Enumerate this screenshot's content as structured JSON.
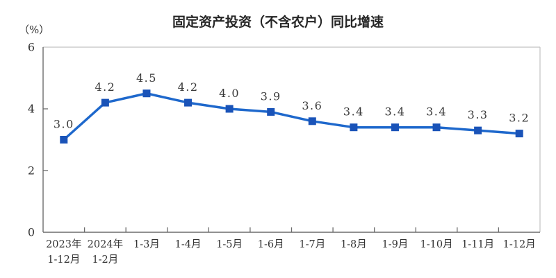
{
  "page": {
    "title": "固定资产投资（不含农户）同比增速",
    "unit_label": "（%）"
  },
  "chart_data": {
    "type": "line",
    "title": "固定资产投资（不含农户）同比增速",
    "unit": "（%）",
    "categories": [
      "2023年\n1-12月",
      "2024年\n1-2月",
      "1-3月",
      "1-4月",
      "1-5月",
      "1-6月",
      "1-7月",
      "1-8月",
      "1-9月",
      "1-10月",
      "1-11月",
      "1-12月"
    ],
    "values": [
      3.0,
      4.2,
      4.5,
      4.2,
      4.0,
      3.9,
      3.6,
      3.4,
      3.4,
      3.4,
      3.3,
      3.2
    ],
    "yticks": [
      0,
      2,
      4,
      6
    ],
    "ylim": [
      0,
      6
    ],
    "xlabel": "",
    "ylabel": "（%）",
    "grid": false,
    "legend_position": "none",
    "colors": {
      "line": "#1e68cc",
      "marker": "#1a53b8",
      "axis": "#6b6b6b",
      "border": "#c2c2c2",
      "title": "#262626",
      "label": "#3a3a3a"
    }
  }
}
